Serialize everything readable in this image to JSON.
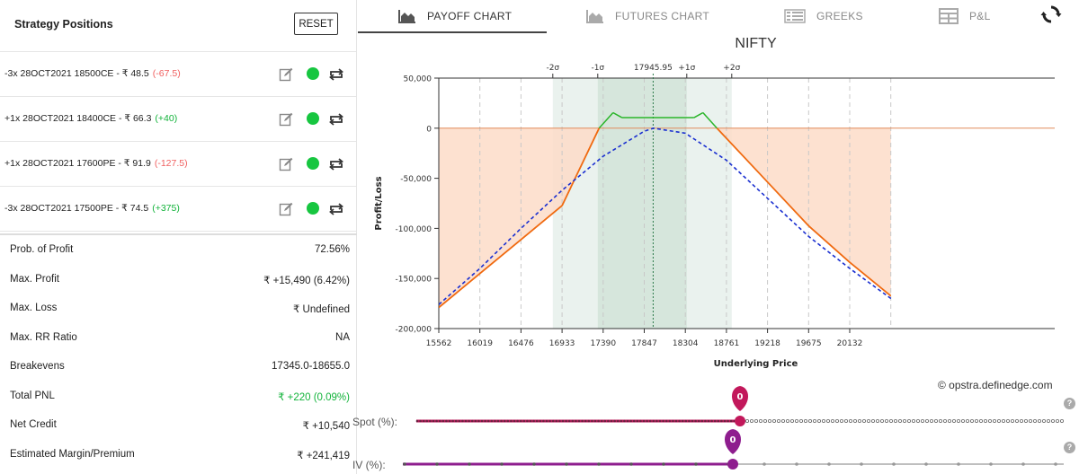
{
  "left_panel": {
    "title": "Strategy Positions",
    "reset_label": "RESET",
    "positions": [
      {
        "text": "-3x  28OCT2021  18500CE  - ₹ 48.5",
        "change": "(-67.5)",
        "change_sign": "neg"
      },
      {
        "text": "+1x  28OCT2021  18400CE  - ₹ 66.3",
        "change": "(+40)",
        "change_sign": "pos"
      },
      {
        "text": "+1x  28OCT2021  17600PE  - ₹ 91.9",
        "change": "(-127.5)",
        "change_sign": "neg"
      },
      {
        "text": "-3x  28OCT2021  17500PE  - ₹ 74.5",
        "change": "(+375)",
        "change_sign": "pos"
      }
    ],
    "stats": [
      {
        "label": "Prob. of Profit",
        "value": "72.56%"
      },
      {
        "label": "Max. Profit",
        "value": "₹ +15,490 (6.42%)"
      },
      {
        "label": "Max. Loss",
        "value": "₹ Undefined"
      },
      {
        "label": "Max. RR Ratio",
        "value": "NA"
      },
      {
        "label": "Breakevens",
        "value": "17345.0-18655.0"
      },
      {
        "label": "Total PNL",
        "value": "₹ +220 (0.09%)",
        "color": "green"
      },
      {
        "label": "Net Credit",
        "value": "₹ +10,540"
      },
      {
        "label": "Estimated Margin/Premium",
        "value": "₹ +241,419"
      }
    ]
  },
  "tabs": [
    {
      "label": "PAYOFF CHART",
      "icon": "area-chart-icon",
      "active": true
    },
    {
      "label": "FUTURES CHART",
      "icon": "area-chart-icon",
      "active": false
    },
    {
      "label": "GREEKS",
      "icon": "table-list-icon",
      "active": false
    },
    {
      "label": "P&L",
      "icon": "grid-table-icon",
      "active": false
    }
  ],
  "watermark": "© opstra.definedge.com",
  "sliders": {
    "spot_label": "Spot (%):",
    "spot_value": "0",
    "iv_label": "IV (%):",
    "iv_value": "0"
  },
  "colors": {
    "profit_line": "#2ab52a",
    "loss_line": "#f06a10",
    "target_line": "#1a2fd0",
    "loss_fill": "#fddcc8",
    "sigma1_fill": "#d6e6dc",
    "sigma2_fill": "#eaf2ee",
    "spot_marker": "#c2185b",
    "iv_marker": "#8e1d8e"
  },
  "chart_data": {
    "type": "line",
    "title": "NIFTY",
    "xlabel": "Underlying Price",
    "ylabel": "Profit/Loss",
    "xlim": [
      15562,
      20590
    ],
    "ylim": [
      -200000,
      50000
    ],
    "x_ticks": [
      15562,
      16019,
      16476,
      16933,
      17390,
      17847,
      18304,
      18761,
      19218,
      19675,
      20132
    ],
    "y_ticks": [
      50000,
      0,
      -50000,
      -100000,
      -150000,
      -200000
    ],
    "y_tick_labels": [
      "50,000",
      "0",
      "-50,000",
      "-100,000",
      "-150,000",
      "-200,000"
    ],
    "spot": 17945.95,
    "spot_label": "17945.95",
    "sigma_levels": [
      {
        "label": "-2σ",
        "x": 16830
      },
      {
        "label": "-1σ",
        "x": 17330
      },
      {
        "label": "+1σ",
        "x": 18320
      },
      {
        "label": "+2σ",
        "x": 18820
      }
    ],
    "series": [
      {
        "name": "expiry",
        "x": [
          15562,
          16019,
          16476,
          16933,
          17345,
          17500,
          17600,
          18400,
          18500,
          18655,
          19218,
          19675,
          20132,
          20590
        ],
        "y": [
          -179010,
          -145110,
          -111210,
          -77310,
          0,
          15490,
          10540,
          10540,
          15490,
          0,
          -53770,
          -97500,
          -133830,
          -167440
        ]
      },
      {
        "name": "target",
        "x": [
          15562,
          16019,
          16476,
          16933,
          17390,
          17847,
          17950,
          18304,
          18761,
          19218,
          19675,
          20132,
          20590
        ],
        "y": [
          -176000,
          -140000,
          -100000,
          -62000,
          -28000,
          -3000,
          0,
          -5000,
          -32000,
          -70000,
          -108000,
          -140000,
          -170000
        ]
      }
    ]
  }
}
